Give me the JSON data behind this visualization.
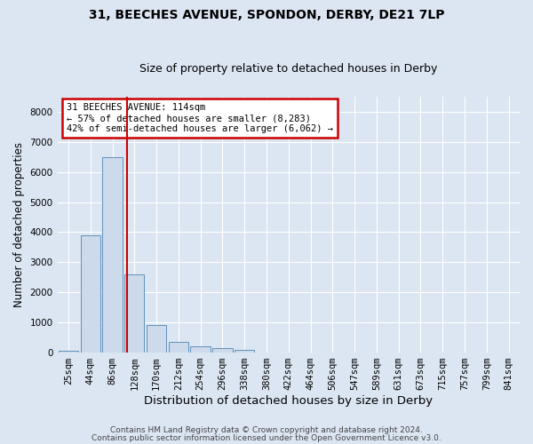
{
  "title1": "31, BEECHES AVENUE, SPONDON, DERBY, DE21 7LP",
  "title2": "Size of property relative to detached houses in Derby",
  "xlabel": "Distribution of detached houses by size in Derby",
  "ylabel": "Number of detached properties",
  "footer1": "Contains HM Land Registry data © Crown copyright and database right 2024.",
  "footer2": "Contains public sector information licensed under the Open Government Licence v3.0.",
  "bin_labels": [
    "25sqm",
    "44sqm",
    "86sqm",
    "128sqm",
    "170sqm",
    "212sqm",
    "254sqm",
    "296sqm",
    "338sqm",
    "380sqm",
    "422sqm",
    "464sqm",
    "506sqm",
    "547sqm",
    "589sqm",
    "631sqm",
    "673sqm",
    "715sqm",
    "757sqm",
    "799sqm",
    "841sqm"
  ],
  "bar_values": [
    50,
    3900,
    6500,
    2600,
    900,
    350,
    200,
    130,
    70,
    0,
    0,
    0,
    0,
    0,
    0,
    0,
    0,
    0,
    0,
    0,
    0
  ],
  "bar_color": "#ccdaeb",
  "bar_edge_color": "#6090bb",
  "red_line_color": "#cc0000",
  "annotation_line1": "31 BEECHES AVENUE: 114sqm",
  "annotation_line2": "← 57% of detached houses are smaller (8,283)",
  "annotation_line3": "42% of semi-detached houses are larger (6,062) →",
  "annotation_box_color": "#ffffff",
  "annotation_box_edge": "#cc0000",
  "ylim_max": 8500,
  "yticks": [
    0,
    1000,
    2000,
    3000,
    4000,
    5000,
    6000,
    7000,
    8000
  ],
  "bg_color": "#dce6f2",
  "plot_bg_color": "#dce6f2",
  "grid_color": "#ffffff",
  "title1_fontsize": 10,
  "title2_fontsize": 9,
  "xlabel_fontsize": 9.5,
  "ylabel_fontsize": 8.5,
  "tick_fontsize": 7.5,
  "annotation_fontsize": 7.5,
  "footer_fontsize": 6.5
}
